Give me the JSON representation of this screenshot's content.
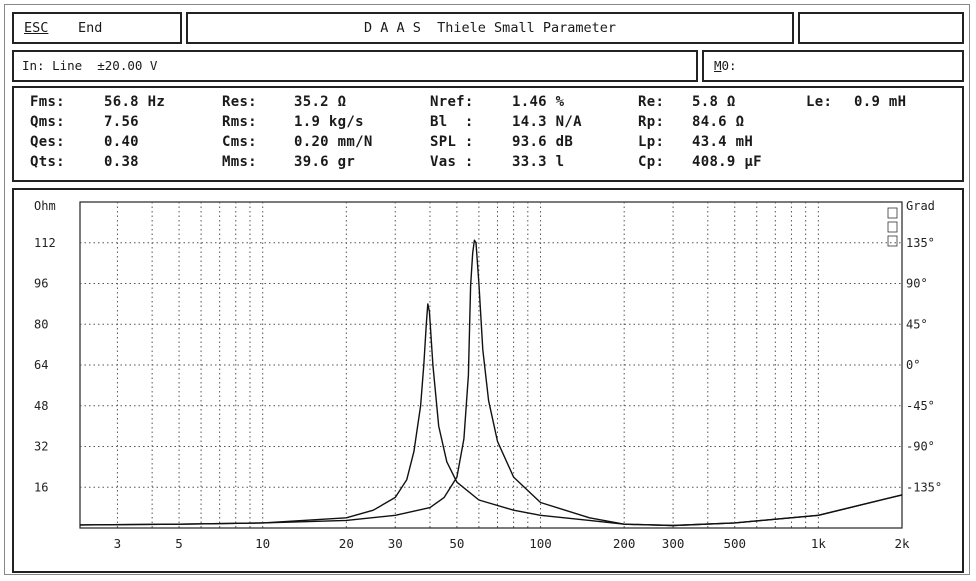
{
  "header": {
    "esc_key": "ESC",
    "esc_action": "End",
    "title": "D A A S  Thiele Small Parameter"
  },
  "input": {
    "label": "In: Line  ±20.00 V",
    "mo_prefix": "M",
    "mo_rest": "0:"
  },
  "params": [
    {
      "label": "Fms:",
      "value": "56.8 Hz"
    },
    {
      "label": "Qms:",
      "value": "7.56"
    },
    {
      "label": "Qes:",
      "value": "0.40"
    },
    {
      "label": "Qts:",
      "value": "0.38"
    },
    {
      "label": "Res:",
      "value": "35.2 Ω"
    },
    {
      "label": "Rms:",
      "value": "1.9 kg/s"
    },
    {
      "label": "Cms:",
      "value": "0.20 mm/N"
    },
    {
      "label": "Mms:",
      "value": "39.6 gr"
    },
    {
      "label": "Nref:",
      "value": "1.46 %"
    },
    {
      "label": "Bl  :",
      "value": "14.3 N/A"
    },
    {
      "label": "SPL :",
      "value": "93.6 dB"
    },
    {
      "label": "Vas :",
      "value": "33.3 l"
    },
    {
      "label": "Re:",
      "value": "5.8 Ω"
    },
    {
      "label": "Rp:",
      "value": "84.6 Ω"
    },
    {
      "label": "Lp:",
      "value": "43.4 mH"
    },
    {
      "label": "Cp:",
      "value": "408.9 µF"
    },
    {
      "label": "Le:",
      "value": "0.9 mH"
    }
  ],
  "chart_data": {
    "type": "line",
    "left_unit": "Ohm",
    "right_unit": "Grad",
    "x_scale": "log",
    "xlim": [
      2.2,
      2000
    ],
    "ylim": [
      0,
      128
    ],
    "x_tick_labels": [
      {
        "v": 3,
        "t": "3"
      },
      {
        "v": 5,
        "t": "5"
      },
      {
        "v": 10,
        "t": "10"
      },
      {
        "v": 20,
        "t": "20"
      },
      {
        "v": 30,
        "t": "30"
      },
      {
        "v": 50,
        "t": "50"
      },
      {
        "v": 100,
        "t": "100"
      },
      {
        "v": 200,
        "t": "200"
      },
      {
        "v": 300,
        "t": "300"
      },
      {
        "v": 500,
        "t": "500"
      },
      {
        "v": 1000,
        "t": "1k"
      },
      {
        "v": 2000,
        "t": "2k"
      }
    ],
    "y_ticks_left": [
      16,
      32,
      48,
      64,
      80,
      96,
      112
    ],
    "y_ticks_right": [
      {
        "v": 16,
        "t": "-135°"
      },
      {
        "v": 32,
        "t": "-90°"
      },
      {
        "v": 48,
        "t": "-45°"
      },
      {
        "v": 64,
        "t": "0°"
      },
      {
        "v": 80,
        "t": "45°"
      },
      {
        "v": 96,
        "t": "90°"
      },
      {
        "v": 112,
        "t": "135°"
      }
    ],
    "series": [
      {
        "values": [
          [
            2.2,
            1.2
          ],
          [
            5,
            1.5
          ],
          [
            10,
            2
          ],
          [
            20,
            4
          ],
          [
            25,
            7
          ],
          [
            30,
            12
          ],
          [
            33,
            19
          ],
          [
            35,
            30
          ],
          [
            37,
            48
          ],
          [
            38,
            64
          ],
          [
            38.8,
            80
          ],
          [
            39.3,
            88
          ],
          [
            39.8,
            85
          ],
          [
            41,
            64
          ],
          [
            43,
            40
          ],
          [
            46,
            26
          ],
          [
            50,
            18
          ],
          [
            60,
            11
          ],
          [
            80,
            7
          ],
          [
            100,
            5
          ],
          [
            150,
            3
          ],
          [
            200,
            1.5
          ],
          [
            300,
            1
          ],
          [
            500,
            2
          ],
          [
            1000,
            5
          ],
          [
            2000,
            13
          ]
        ]
      },
      {
        "values": [
          [
            2.2,
            1.2
          ],
          [
            5,
            1.5
          ],
          [
            10,
            2
          ],
          [
            20,
            3
          ],
          [
            30,
            5
          ],
          [
            40,
            8
          ],
          [
            45,
            12
          ],
          [
            50,
            20
          ],
          [
            53,
            35
          ],
          [
            55,
            60
          ],
          [
            56,
            95
          ],
          [
            57,
            108
          ],
          [
            57.8,
            113
          ],
          [
            58.6,
            112
          ],
          [
            60,
            96
          ],
          [
            62,
            70
          ],
          [
            65,
            50
          ],
          [
            70,
            34
          ],
          [
            80,
            20
          ],
          [
            100,
            10
          ],
          [
            150,
            4
          ],
          [
            200,
            1.5
          ],
          [
            300,
            1
          ],
          [
            500,
            2
          ],
          [
            1000,
            5
          ],
          [
            2000,
            13
          ]
        ]
      }
    ]
  }
}
